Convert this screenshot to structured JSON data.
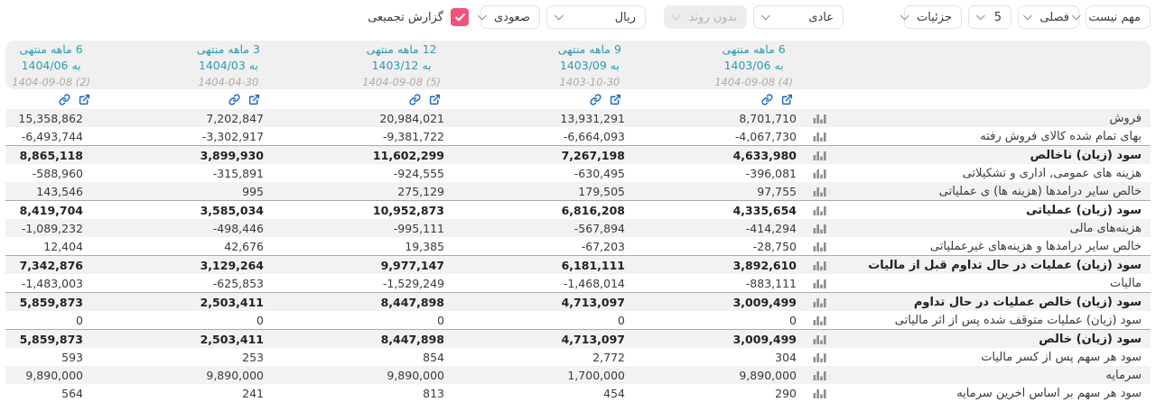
{
  "colors": {
    "accent_teal": "#2a9cb0",
    "icon_blue": "#1565c0",
    "checkbox_pink": "#f25278",
    "stripe": "#f2f2f2",
    "header_band": "#f0f0f0"
  },
  "icons": {
    "dropdown_chevron": "chevron-down-icon",
    "attach": "link-icon",
    "open": "external-link-icon",
    "row_chart": "bar-chart-icon",
    "checkbox_check": "check-icon"
  },
  "toolbar": {
    "controls": [
      {
        "name": "importance",
        "label": "مهم نیست",
        "disabled": false
      },
      {
        "name": "period-type",
        "label": "فصلی",
        "disabled": false
      },
      {
        "name": "period-count",
        "label": "5",
        "disabled": false
      },
      {
        "name": "detail-level",
        "label": "جزئیات",
        "disabled": false
      },
      {
        "name": "display-mode",
        "label": "عادی",
        "disabled": false
      },
      {
        "name": "trend",
        "label": "بدون روند",
        "disabled": true
      },
      {
        "name": "currency",
        "label": "ریال",
        "disabled": false
      },
      {
        "name": "sort-order",
        "label": "صعودی",
        "disabled": false
      }
    ],
    "checkbox": {
      "label": "گزارش تجمیعی",
      "checked": true
    }
  },
  "table": {
    "columns": [
      {
        "title": "6 ماهه منتهی",
        "subtitle": "به 1403/06",
        "date": "1404-09-08 (4)"
      },
      {
        "title": "9 ماهه منتهی",
        "subtitle": "به 1403/09",
        "date": "1403-10-30"
      },
      {
        "title": "12 ماهه منتهی",
        "subtitle": "به 1403/12",
        "date": "1404-09-08 (5)"
      },
      {
        "title": "3 ماهه منتهی",
        "subtitle": "به 1404/03",
        "date": "1404-04-30"
      },
      {
        "title": "6 ماهه منتهی",
        "subtitle": "به 1404/06",
        "date": "1404-09-08 (2)"
      }
    ],
    "rows": [
      {
        "label": "فروش",
        "bold": false,
        "values": [
          "8,701,710",
          "13,931,291",
          "20,984,021",
          "7,202,847",
          "15,358,862"
        ]
      },
      {
        "label": "بهای تمام شده کالای فروش رفته",
        "bold": false,
        "values": [
          "-4,067,730",
          "-6,664,093",
          "-9,381,722",
          "-3,302,917",
          "-6,493,744"
        ]
      },
      {
        "label": "سود (زیان) ناخالص",
        "bold": true,
        "values": [
          "4,633,980",
          "7,267,198",
          "11,602,299",
          "3,899,930",
          "8,865,118"
        ]
      },
      {
        "label": "هزینه های عمومی, اداری و تشکیلاتی",
        "bold": false,
        "values": [
          "-396,081",
          "-630,495",
          "-924,555",
          "-315,891",
          "-588,960"
        ]
      },
      {
        "label": "خالص سایر درامدها (هزینه ها) ی عملیاتی",
        "bold": false,
        "values": [
          "97,755",
          "179,505",
          "275,129",
          "995",
          "143,546"
        ]
      },
      {
        "label": "سود (زیان) عملیاتی",
        "bold": true,
        "values": [
          "4,335,654",
          "6,816,208",
          "10,952,873",
          "3,585,034",
          "8,419,704"
        ]
      },
      {
        "label": "هزینه‌های مالی",
        "bold": false,
        "values": [
          "-414,294",
          "-567,894",
          "-995,111",
          "-498,446",
          "-1,089,232"
        ]
      },
      {
        "label": "خالص سایر درآمدها و هزینه‌های غیرعملیاتی",
        "bold": false,
        "values": [
          "-28,750",
          "-67,203",
          "19,385",
          "42,676",
          "12,404"
        ]
      },
      {
        "label": "سود (زیان) عملیات در حال تداوم قبل از مالیات",
        "bold": true,
        "values": [
          "3,892,610",
          "6,181,111",
          "9,977,147",
          "3,129,264",
          "7,342,876"
        ]
      },
      {
        "label": "مالیات",
        "bold": false,
        "values": [
          "-883,111",
          "-1,468,014",
          "-1,529,249",
          "-625,853",
          "-1,483,003"
        ]
      },
      {
        "label": "سود (زیان) خالص عملیات در حال تداوم",
        "bold": true,
        "values": [
          "3,009,499",
          "4,713,097",
          "8,447,898",
          "2,503,411",
          "5,859,873"
        ]
      },
      {
        "label": "سود (زیان) عملیات متوقف شده پس از اثر مالیاتی",
        "bold": false,
        "values": [
          "0",
          "0",
          "0",
          "0",
          "0"
        ]
      },
      {
        "label": "سود (زیان) خالص",
        "bold": true,
        "values": [
          "3,009,499",
          "4,713,097",
          "8,447,898",
          "2,503,411",
          "5,859,873"
        ]
      },
      {
        "label": "سود هر سهم پس از کسر مالیات",
        "bold": false,
        "values": [
          "304",
          "2,772",
          "854",
          "253",
          "593"
        ]
      },
      {
        "label": "سرمایه",
        "bold": false,
        "values": [
          "9,890,000",
          "1,700,000",
          "9,890,000",
          "9,890,000",
          "9,890,000"
        ]
      },
      {
        "label": "سود هر سهم بر اساس آخرین سرمایه",
        "bold": false,
        "values": [
          "290",
          "454",
          "813",
          "241",
          "564"
        ]
      }
    ]
  }
}
